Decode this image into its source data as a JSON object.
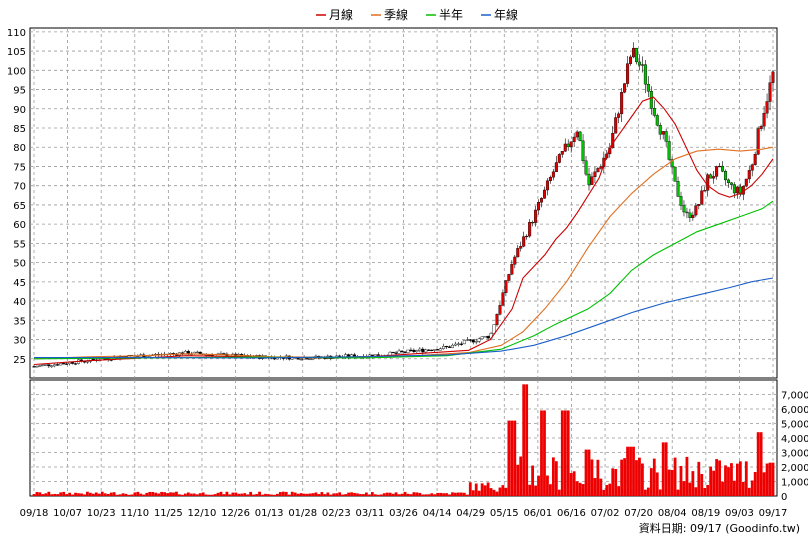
{
  "legend": [
    {
      "label": "月線",
      "color": "#cc0000"
    },
    {
      "label": "季線",
      "color": "#e07020"
    },
    {
      "label": "半年",
      "color": "#00c000"
    },
    {
      "label": "年線",
      "color": "#1a5fc8"
    }
  ],
  "footer": {
    "date_label": "資料日期: 09/17",
    "source": "(Goodinfo.tw)"
  },
  "chart_data": {
    "type": "candlestick",
    "price_axis": {
      "ticks": [
        25,
        30,
        35,
        40,
        45,
        50,
        55,
        60,
        65,
        70,
        75,
        80,
        85,
        90,
        95,
        100,
        105,
        110
      ],
      "range": [
        20,
        111
      ]
    },
    "volume_axis": {
      "ticks": [
        0,
        1000,
        2000,
        3000,
        4000,
        5000,
        6000,
        7000
      ],
      "tick_labels": [
        "0",
        "1,000",
        "2,000",
        "3,000",
        "4,000",
        "5,000",
        "6,000",
        "7,000"
      ],
      "range": [
        0,
        8000
      ]
    },
    "x_labels": [
      "09/18",
      "10/07",
      "10/23",
      "11/10",
      "11/25",
      "12/10",
      "12/26",
      "01/13",
      "01/28",
      "02/23",
      "03/11",
      "03/26",
      "04/14",
      "04/29",
      "05/15",
      "06/01",
      "06/16",
      "07/02",
      "07/20",
      "08/04",
      "08/19",
      "09/03",
      "09/17"
    ],
    "grid": true,
    "legend_position": "top-center",
    "series": [
      {
        "name": "月線",
        "color": "#cc0000",
        "points": [
          [
            0,
            23.5
          ],
          [
            5,
            24.5
          ],
          [
            10,
            25.2
          ],
          [
            14,
            25.8
          ],
          [
            20,
            25.5
          ],
          [
            26,
            25.2
          ],
          [
            30,
            25.4
          ],
          [
            35,
            26.3
          ],
          [
            40,
            27.2
          ],
          [
            42,
            30
          ],
          [
            44,
            38
          ],
          [
            45,
            46
          ],
          [
            47,
            52
          ],
          [
            48,
            56
          ],
          [
            49,
            59
          ],
          [
            50,
            63
          ],
          [
            52,
            72
          ],
          [
            53,
            80
          ],
          [
            55,
            88
          ],
          [
            56,
            92
          ],
          [
            57,
            93
          ],
          [
            58,
            90
          ],
          [
            59,
            86
          ],
          [
            60,
            80
          ],
          [
            61,
            74
          ],
          [
            62,
            70
          ],
          [
            63,
            68
          ],
          [
            64,
            67
          ],
          [
            65,
            68
          ],
          [
            66,
            70
          ],
          [
            67,
            73
          ],
          [
            68,
            77
          ]
        ]
      },
      {
        "name": "季線",
        "color": "#e07020",
        "points": [
          [
            0,
            25
          ],
          [
            5,
            25.5
          ],
          [
            10,
            25.8
          ],
          [
            14,
            26.3
          ],
          [
            18,
            26
          ],
          [
            22,
            25.5
          ],
          [
            26,
            25.4
          ],
          [
            30,
            25.5
          ],
          [
            35,
            25.8
          ],
          [
            40,
            26.6
          ],
          [
            43,
            28.5
          ],
          [
            45,
            32
          ],
          [
            47,
            38
          ],
          [
            49,
            45
          ],
          [
            51,
            54
          ],
          [
            53,
            62
          ],
          [
            55,
            68
          ],
          [
            57,
            73
          ],
          [
            59,
            77
          ],
          [
            61,
            79
          ],
          [
            63,
            79.5
          ],
          [
            65,
            79
          ],
          [
            67,
            79.5
          ],
          [
            68,
            80
          ]
        ]
      },
      {
        "name": "半年",
        "color": "#00c000",
        "points": [
          [
            0,
            25
          ],
          [
            10,
            25.2
          ],
          [
            20,
            25.4
          ],
          [
            30,
            25.2
          ],
          [
            38,
            25.8
          ],
          [
            43,
            27.5
          ],
          [
            46,
            31
          ],
          [
            48,
            34
          ],
          [
            51,
            38
          ],
          [
            53,
            42
          ],
          [
            55,
            48
          ],
          [
            57,
            52
          ],
          [
            59,
            55
          ],
          [
            61,
            58
          ],
          [
            63,
            60
          ],
          [
            65,
            62
          ],
          [
            67,
            64
          ],
          [
            68,
            66
          ]
        ]
      },
      {
        "name": "年線",
        "color": "#1a5fc8",
        "points": [
          [
            0,
            25.3
          ],
          [
            10,
            25.3
          ],
          [
            20,
            25.2
          ],
          [
            30,
            25.5
          ],
          [
            38,
            26
          ],
          [
            43,
            27
          ],
          [
            46,
            28.5
          ],
          [
            49,
            31
          ],
          [
            52,
            34
          ],
          [
            55,
            37
          ],
          [
            58,
            39.5
          ],
          [
            61,
            41.5
          ],
          [
            64,
            43.5
          ],
          [
            66,
            45
          ],
          [
            68,
            46
          ]
        ]
      }
    ],
    "candles_summary": "daily candles, ~24 from Sep to Apr, rally May–Jul to ~108, pullback to ~60 in Aug, rebound to ~99 on 09/17"
  }
}
